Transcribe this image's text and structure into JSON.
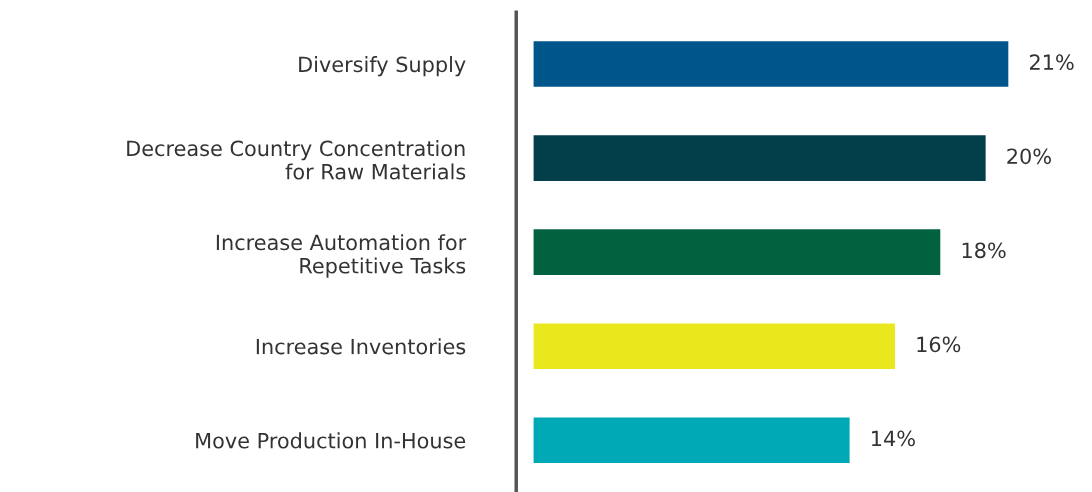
{
  "chart_data": {
    "type": "bar",
    "orientation": "horizontal",
    "categories": [
      "Diversify Supply",
      "Decrease Country Concentration\nfor Raw Materials",
      "Increase Automation for\nRepetitive Tasks",
      "Increase Inventories",
      "Move Production In-House"
    ],
    "values": [
      21,
      20,
      18,
      16,
      14
    ],
    "value_labels": [
      "21%",
      "20%",
      "18%",
      "16%",
      "14%"
    ],
    "colors": [
      "#00558a",
      "#023f4b",
      "#02623f",
      "#e9e81c",
      "#00a9b6"
    ],
    "tick_labels": "y",
    "grid": false,
    "legend": false
  }
}
